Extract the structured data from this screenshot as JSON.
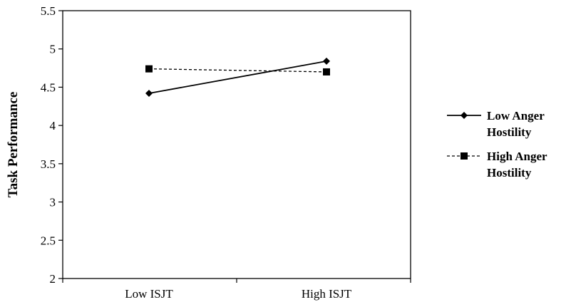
{
  "chart_data": {
    "type": "line",
    "categories": [
      "Low ISJT",
      "High ISJT"
    ],
    "series": [
      {
        "name": "Low Anger Hostility",
        "name_lines": [
          "Low Anger",
          "Hostility"
        ],
        "values": [
          4.42,
          4.84
        ],
        "line_style": "solid",
        "marker": "diamond"
      },
      {
        "name": "High Anger Hostility",
        "name_lines": [
          "High Anger",
          "Hostility"
        ],
        "values": [
          4.74,
          4.7
        ],
        "line_style": "dashed",
        "marker": "square"
      }
    ],
    "title": "",
    "xlabel": "",
    "ylabel": "Task Performance",
    "ylim": [
      2,
      5.5
    ],
    "yticks": [
      "2",
      "2.5",
      "3",
      "3.5",
      "4",
      "4.5",
      "5",
      "5.5"
    ],
    "grid": false,
    "legend": "right",
    "colors": {
      "line": "#000000",
      "background": "#ffffff"
    }
  }
}
